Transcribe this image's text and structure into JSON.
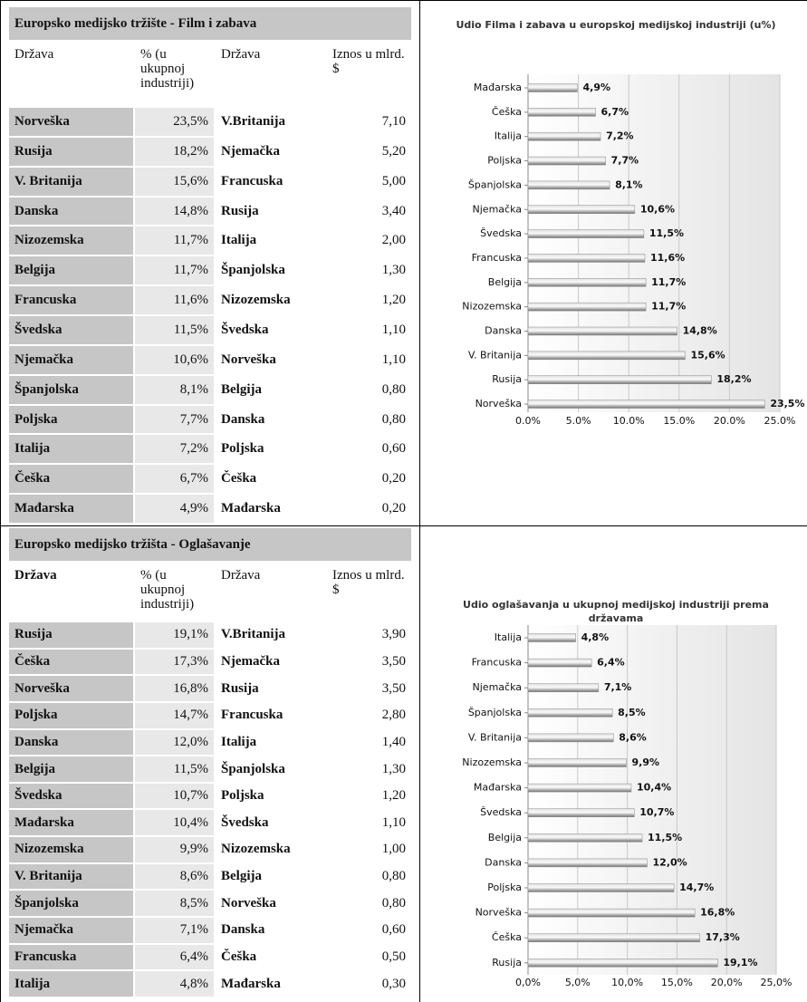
{
  "tables": [
    {
      "title": "Europsko medijsko tržište - Film i zabava",
      "headers": [
        "Država",
        "% (u ukupnoj industriji)",
        "Država",
        "Iznos u mlrd. $"
      ],
      "rows": [
        [
          "Norveška",
          "23,5%",
          "V.Britanija",
          "7,10"
        ],
        [
          "Rusija",
          "18,2%",
          "Njemačka",
          "5,20"
        ],
        [
          "V. Britanija",
          "15,6%",
          "Francuska",
          "5,00"
        ],
        [
          "Danska",
          "14,8%",
          "Rusija",
          "3,40"
        ],
        [
          "Nizozemska",
          "11,7%",
          "Italija",
          "2,00"
        ],
        [
          "Belgija",
          "11,7%",
          "Španjolska",
          "1,30"
        ],
        [
          "Francuska",
          "11,6%",
          "Nizozemska",
          "1,20"
        ],
        [
          "Švedska",
          "11,5%",
          "Švedska",
          "1,10"
        ],
        [
          "Njemačka",
          "10,6%",
          "Norveška",
          "1,10"
        ],
        [
          "Španjolska",
          "8,1%",
          "Belgija",
          "0,80"
        ],
        [
          "Poljska",
          "7,7%",
          "Danska",
          "0,80"
        ],
        [
          "Italija",
          "7,2%",
          "Poljska",
          "0,60"
        ],
        [
          "Češka",
          "6,7%",
          "Češka",
          "0,20"
        ],
        [
          "Mađarska",
          "4,9%",
          "Mađarska",
          "0,20"
        ]
      ]
    },
    {
      "title": "Europsko medijsko tržišta - Oglašavanje",
      "headers": [
        "Država",
        "% (u ukupnoj industriji)",
        "Država",
        "Iznos u mlrd. $"
      ],
      "rows": [
        [
          "Rusija",
          "19,1%",
          "V.Britanija",
          "3,90"
        ],
        [
          "Češka",
          "17,3%",
          "Njemačka",
          "3,50"
        ],
        [
          "Norveška",
          "16,8%",
          "Rusija",
          "3,50"
        ],
        [
          "Poljska",
          "14,7%",
          "Francuska",
          "2,80"
        ],
        [
          "Danska",
          "12,0%",
          "Italija",
          "1,40"
        ],
        [
          "Belgija",
          "11,5%",
          "Španjolska",
          "1,30"
        ],
        [
          "Švedska",
          "10,7%",
          "Poljska",
          "1,20"
        ],
        [
          "Mađarska",
          "10,4%",
          "Švedska",
          "1,10"
        ],
        [
          "Nizozemska",
          "9,9%",
          "Nizozemska",
          "1,00"
        ],
        [
          "V. Britanija",
          "8,6%",
          "Belgija",
          "0,80"
        ],
        [
          "Španjolska",
          "8,5%",
          "Norveška",
          "0,80"
        ],
        [
          "Njemačka",
          "7,1%",
          "Danska",
          "0,60"
        ],
        [
          "Francuska",
          "6,4%",
          "Češka",
          "0,50"
        ],
        [
          "Italija",
          "4,8%",
          "Mađarska",
          "0,30"
        ]
      ]
    }
  ],
  "chart_data": [
    {
      "type": "bar",
      "title": "Udio Filma i zabava u europskoj medijskoj industriji (u%)",
      "categories": [
        "Mađarska",
        "Češka",
        "Italija",
        "Poljska",
        "Španjolska",
        "Njemačka",
        "Švedska",
        "Francuska",
        "Belgija",
        "Nizozemska",
        "Danska",
        "V. Britanija",
        "Rusija",
        "Norveška"
      ],
      "values": [
        4.9,
        6.7,
        7.2,
        7.7,
        8.1,
        10.6,
        11.5,
        11.6,
        11.7,
        11.7,
        14.8,
        15.6,
        18.2,
        23.5
      ],
      "value_labels": [
        "4,9%",
        "6,7%",
        "7,2%",
        "7,7%",
        "8,1%",
        "10,6%",
        "11,5%",
        "11,6%",
        "11,7%",
        "11,7%",
        "14,8%",
        "15,6%",
        "18,2%",
        "23,5%"
      ],
      "xlim": [
        0,
        25
      ],
      "xticks": [
        {
          "value": 0,
          "label": "0.0%"
        },
        {
          "value": 5,
          "label": "5.0%"
        },
        {
          "value": 10,
          "label": "10.0%"
        },
        {
          "value": 15,
          "label": "15.0%"
        },
        {
          "value": 20,
          "label": "20.0%"
        },
        {
          "value": 25,
          "label": "25.0%"
        }
      ],
      "grid": true,
      "color": "#8c8c8c"
    },
    {
      "type": "bar",
      "title": "Udio oglašavanja u ukupnoj medijskoj industriji prema državama",
      "categories": [
        "Italija",
        "Francuska",
        "Njemačka",
        "Španjolska",
        "V. Britanija",
        "Nizozemska",
        "Mađarska",
        "Švedska",
        "Belgija",
        "Danska",
        "Poljska",
        "Norveška",
        "Češka",
        "Rusija"
      ],
      "values": [
        4.8,
        6.4,
        7.1,
        8.5,
        8.6,
        9.9,
        10.4,
        10.7,
        11.5,
        12.0,
        14.7,
        16.8,
        17.3,
        19.1
      ],
      "value_labels": [
        "4,8%",
        "6,4%",
        "7,1%",
        "8,5%",
        "8,6%",
        "9,9%",
        "10,4%",
        "10,7%",
        "11,5%",
        "12,0%",
        "14,7%",
        "16,8%",
        "17,3%",
        "19,1%"
      ],
      "xlim": [
        0,
        25
      ],
      "xticks": [
        {
          "value": 0,
          "label": "0,0%"
        },
        {
          "value": 5,
          "label": "5,0%"
        },
        {
          "value": 10,
          "label": "10,0%"
        },
        {
          "value": 15,
          "label": "15,0%"
        },
        {
          "value": 20,
          "label": "20,0%"
        },
        {
          "value": 25,
          "label": "25,0%"
        }
      ],
      "grid": true,
      "color": "#8c8c8c"
    }
  ]
}
